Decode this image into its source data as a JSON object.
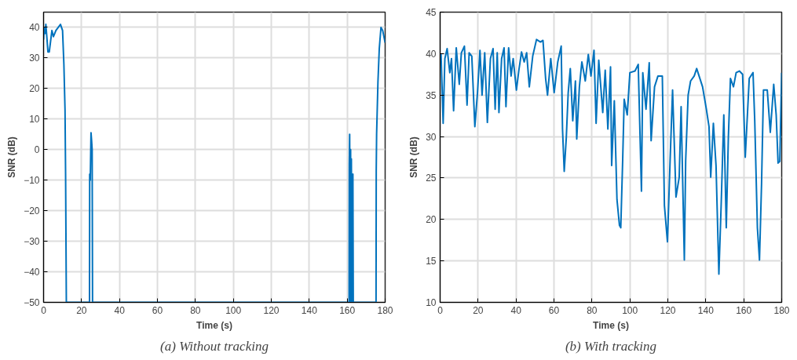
{
  "chart_data": [
    {
      "type": "line",
      "title": "(a) Without tracking",
      "xlabel": "Time (s)",
      "ylabel": "SNR (dB)",
      "xlim": [
        0,
        180
      ],
      "ylim": [
        -50,
        45
      ],
      "xticks": [
        0,
        20,
        40,
        60,
        80,
        100,
        120,
        140,
        160,
        180
      ],
      "yticks": [
        -50,
        -40,
        -30,
        -20,
        -10,
        0,
        10,
        20,
        30,
        40
      ],
      "grid": true,
      "series": [
        {
          "color": "#0072bd",
          "x": [
            0,
            0.3,
            0.8,
            1.2,
            1.7,
            2.3,
            3,
            4.4,
            5.2,
            6.5,
            8.9,
            10,
            10.7,
            11.3,
            11.6,
            12,
            24.2,
            24.3,
            24.6,
            25,
            25.3,
            25.6,
            25.8,
            161,
            161.1,
            161.3,
            161.6,
            161.8,
            162,
            162.2,
            162.5,
            163,
            163.2,
            175.2,
            175.3,
            175.5,
            176.2,
            176.9,
            177.8,
            178.7,
            180
          ],
          "values": [
            36,
            40,
            38,
            41,
            37,
            32,
            32,
            39,
            37,
            39,
            41,
            39,
            28,
            13,
            -8,
            -50,
            -50,
            -8,
            -10,
            5.5,
            3,
            0,
            -50,
            -50,
            -5,
            5,
            -50,
            0,
            -50,
            -3,
            -50,
            -8,
            -50,
            -50,
            -7,
            5,
            22,
            33,
            40,
            39,
            35
          ]
        }
      ]
    },
    {
      "type": "line",
      "title": "(b) With tracking",
      "xlabel": "Time (s)",
      "ylabel": "SNR (dB)",
      "xlim": [
        0,
        180
      ],
      "ylim": [
        10,
        45
      ],
      "xticks": [
        0,
        20,
        40,
        60,
        80,
        100,
        120,
        140,
        160,
        180
      ],
      "yticks": [
        10,
        15,
        20,
        25,
        30,
        35,
        40,
        45
      ],
      "grid": true,
      "series": [
        {
          "color": "#0072bd",
          "x": [
            0,
            0.5,
            1.6,
            2.5,
            3.7,
            5.1,
            6.0,
            7.1,
            8.5,
            10.1,
            11.2,
            12.8,
            14.2,
            15.3,
            16.7,
            18.3,
            19.7,
            21.0,
            22.1,
            23.5,
            24.9,
            26.5,
            27.9,
            29.0,
            30.1,
            31.0,
            32.4,
            33.7,
            34.7,
            36.1,
            37.4,
            38.5,
            40.2,
            41.5,
            42.9,
            44.3,
            45.6,
            47.0,
            48.8,
            50.8,
            52.9,
            54.2,
            55.6,
            56.6,
            58.3,
            60.1,
            62.0,
            63.8,
            64.5,
            65.4,
            66.5,
            67.5,
            68.6,
            69.9,
            71.3,
            72.0,
            73.4,
            74.7,
            76.5,
            78.1,
            79.5,
            81.1,
            82.2,
            83.6,
            85.7,
            87.0,
            88.4,
            89.8,
            90.4,
            91.8,
            93.2,
            94.5,
            95.2,
            96.2,
            97.0,
            98.6,
            100.0,
            102.7,
            104.4,
            106.1,
            106.8,
            108.5,
            110.2,
            111.2,
            113.0,
            114.8,
            117.1,
            118.2,
            119.8,
            121.2,
            122.5,
            124.3,
            126.0,
            127.0,
            128.7,
            129.4,
            130.7,
            132.0,
            133.9,
            135.2,
            136.9,
            138.3,
            140.3,
            141.7,
            142.6,
            144.0,
            145.4,
            146.9,
            148.1,
            149.5,
            150.8,
            151.9,
            153.0,
            154.6,
            156.0,
            157.7,
            159.4,
            160.8,
            162.9,
            164.9,
            165.8,
            167.2,
            168.3,
            169.4,
            170.4,
            172.4,
            174.0,
            175.8,
            177.1,
            178.1,
            179.0,
            180.0
          ],
          "values": [
            39.0,
            39.9,
            31.6,
            39.4,
            40.6,
            37.7,
            39.4,
            33.1,
            40.7,
            36.3,
            40.1,
            40.9,
            33.8,
            40.1,
            39.7,
            31.2,
            35.3,
            40.4,
            35.0,
            40.1,
            31.7,
            39.4,
            40.6,
            33.3,
            40.1,
            32.9,
            39.4,
            40.7,
            33.6,
            40.7,
            37.3,
            39.4,
            35.6,
            38.0,
            40.2,
            39.0,
            40.1,
            36.0,
            39.7,
            41.7,
            41.4,
            41.6,
            37.0,
            35.0,
            39.4,
            35.3,
            39.0,
            40.9,
            30.9,
            25.8,
            29.9,
            35.3,
            38.2,
            31.9,
            36.7,
            29.7,
            36.0,
            39.0,
            36.7,
            39.9,
            37.3,
            40.4,
            31.6,
            39.2,
            32.9,
            38.0,
            30.9,
            38.4,
            26.5,
            34.3,
            22.4,
            19.3,
            19.0,
            27.1,
            34.5,
            32.6,
            37.7,
            37.9,
            38.7,
            23.4,
            37.7,
            33.3,
            38.9,
            29.5,
            36.0,
            37.3,
            37.3,
            21.7,
            17.3,
            27.1,
            35.6,
            22.7,
            25.1,
            33.6,
            15.1,
            27.1,
            35.0,
            36.7,
            37.3,
            38.2,
            37.0,
            36.0,
            33.3,
            31.2,
            25.1,
            31.6,
            26.5,
            13.4,
            21.7,
            32.6,
            19.0,
            29.9,
            37.0,
            36.0,
            37.7,
            37.9,
            37.5,
            27.5,
            37.0,
            37.7,
            31.9,
            19.0,
            15.1,
            24.4,
            35.6,
            35.6,
            30.5,
            36.3,
            32.6,
            26.8,
            27.0,
            37.7
          ]
        }
      ]
    }
  ]
}
